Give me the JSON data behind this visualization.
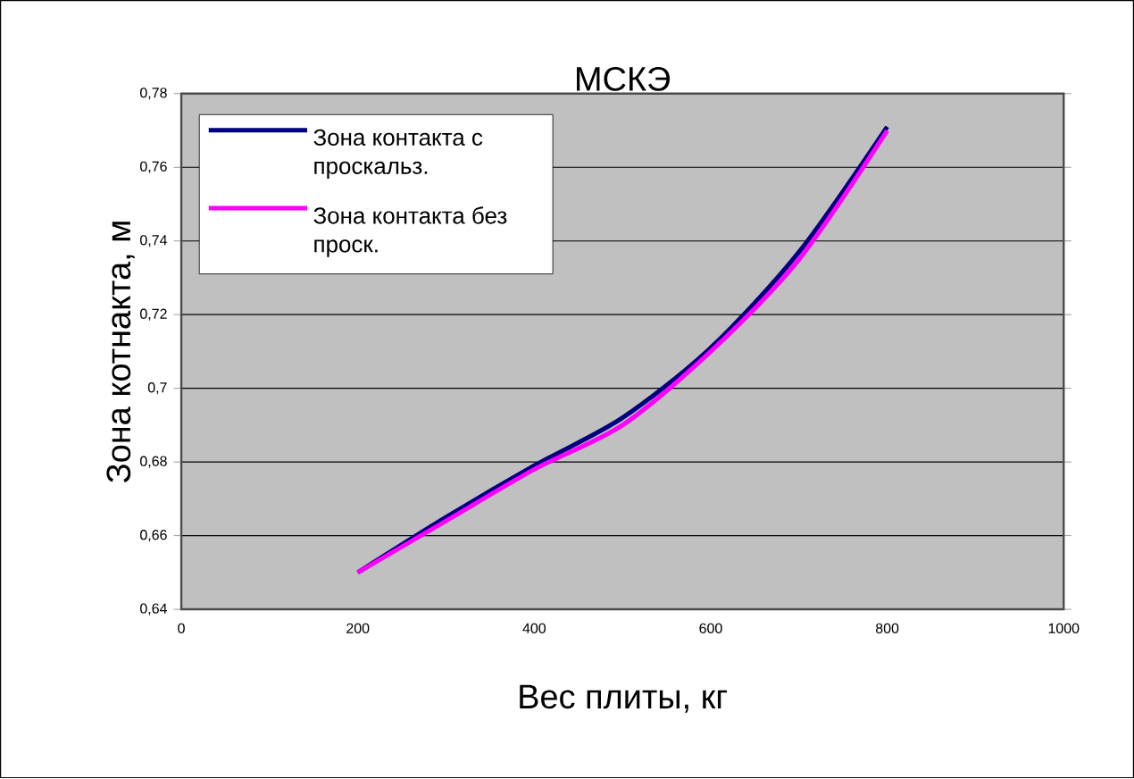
{
  "chart_data": {
    "type": "line",
    "title": "МСКЭ",
    "xlabel": "Вес плиты, кг",
    "ylabel": "Зона котнакта, м",
    "x": [
      200,
      300,
      400,
      500,
      600,
      700,
      800
    ],
    "series": [
      {
        "name": "Зона контакта с проскальз.",
        "color": "#000080",
        "values": [
          0.65,
          0.665,
          0.679,
          0.692,
          0.711,
          0.737,
          0.771
        ]
      },
      {
        "name": "Зона контакта без проск.",
        "color": "#ff00ff",
        "values": [
          0.65,
          0.664,
          0.678,
          0.69,
          0.71,
          0.735,
          0.77
        ]
      }
    ],
    "xlim": [
      0,
      1000
    ],
    "ylim": [
      0.64,
      0.78
    ],
    "xticks": [
      0,
      200,
      400,
      600,
      800,
      1000
    ],
    "yticks": [
      {
        "value": 0.64,
        "label": "0,64"
      },
      {
        "value": 0.66,
        "label": "0,66"
      },
      {
        "value": 0.68,
        "label": "0,68"
      },
      {
        "value": 0.7,
        "label": "0,7"
      },
      {
        "value": 0.72,
        "label": "0,72"
      },
      {
        "value": 0.74,
        "label": "0,74"
      },
      {
        "value": 0.76,
        "label": "0,76"
      },
      {
        "value": 0.78,
        "label": "0,78"
      }
    ],
    "grid": "y",
    "legend": "top left",
    "marker": "none",
    "line_style": "solid"
  }
}
